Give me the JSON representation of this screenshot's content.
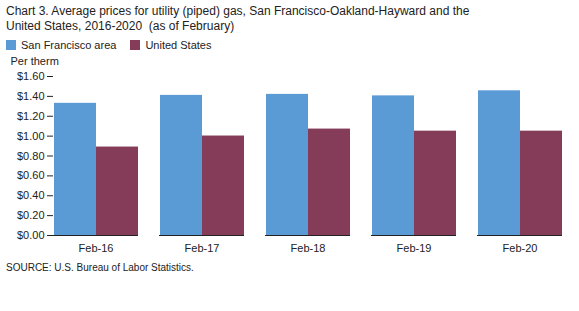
{
  "chart_data": {
    "type": "bar",
    "title": "Chart 3. Average prices for utility (piped) gas, San Francisco-Oakland-Hayward and the\nUnited States, 2016-2020  (as of February)",
    "ylabel": "Per therm",
    "source": "SOURCE: U.S. Bureau of Labor Statistics.",
    "categories": [
      "Feb-16",
      "Feb-17",
      "Feb-18",
      "Feb-19",
      "Feb-20"
    ],
    "series": [
      {
        "name": "San Francisco area",
        "color": "#5B9BD5",
        "values": [
          1.33,
          1.41,
          1.42,
          1.405,
          1.456
        ]
      },
      {
        "name": "United States",
        "color": "#843C58",
        "values": [
          0.89,
          1.001,
          1.071,
          1.05,
          1.05
        ]
      }
    ],
    "ylim": [
      0.0,
      1.6
    ],
    "yticks": [
      {
        "value": 0.0,
        "label": "$0.00"
      },
      {
        "value": 0.2,
        "label": "$0.20"
      },
      {
        "value": 0.4,
        "label": "$0.40"
      },
      {
        "value": 0.6,
        "label": "$0.60"
      },
      {
        "value": 0.8,
        "label": "$0.80"
      },
      {
        "value": 1.0,
        "label": "$1.00"
      },
      {
        "value": 1.2,
        "label": "$1.20"
      },
      {
        "value": 1.4,
        "label": "$1.40"
      },
      {
        "value": 1.6,
        "label": "$1.60"
      }
    ],
    "legend": "upper left",
    "grid": false
  }
}
